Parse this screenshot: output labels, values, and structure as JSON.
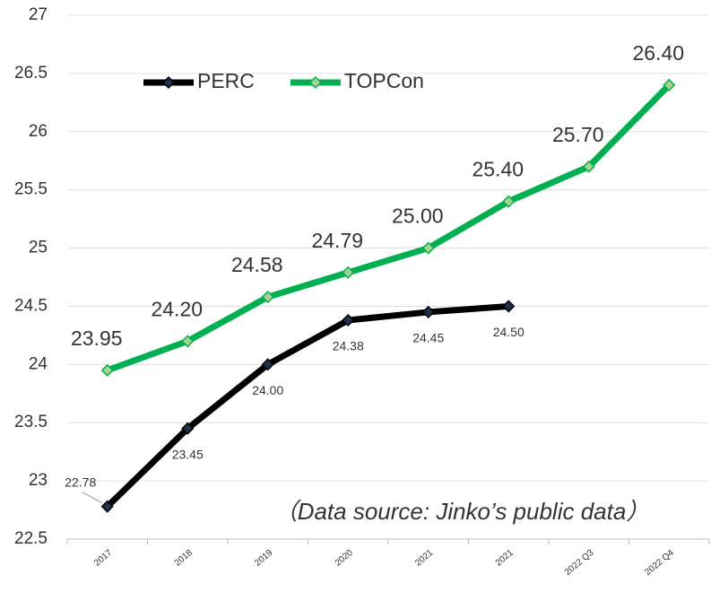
{
  "chart_data": {
    "type": "line",
    "categories": [
      "2017",
      "2018",
      "2019",
      "2020",
      "2021",
      "2021",
      "2022 Q3",
      "2022 Q4"
    ],
    "series": [
      {
        "name": "PERC",
        "color": "#000000",
        "marker_color": "#1f3050",
        "values": [
          22.78,
          23.45,
          24.0,
          24.38,
          24.45,
          24.5,
          null,
          null
        ],
        "value_labels": [
          "22.78",
          "23.45",
          "24.00",
          "24.38",
          "24.45",
          "24.50",
          null,
          null
        ]
      },
      {
        "name": "TOPCon",
        "color": "#00b050",
        "marker_color": "#a9d18e",
        "values": [
          23.95,
          24.2,
          24.58,
          24.79,
          25.0,
          25.4,
          25.7,
          26.4
        ],
        "value_labels": [
          "23.95",
          "24.20",
          "24.58",
          "24.79",
          "25.00",
          "25.40",
          "25.70",
          "26.40"
        ]
      }
    ],
    "ylim": [
      22.5,
      27
    ],
    "yticks": [
      22.5,
      23,
      23.5,
      24,
      24.5,
      25,
      25.5,
      26,
      26.5,
      27
    ],
    "grid": true,
    "legend": "top-left",
    "annotation": "（Data source: Jinko’s public data）"
  }
}
